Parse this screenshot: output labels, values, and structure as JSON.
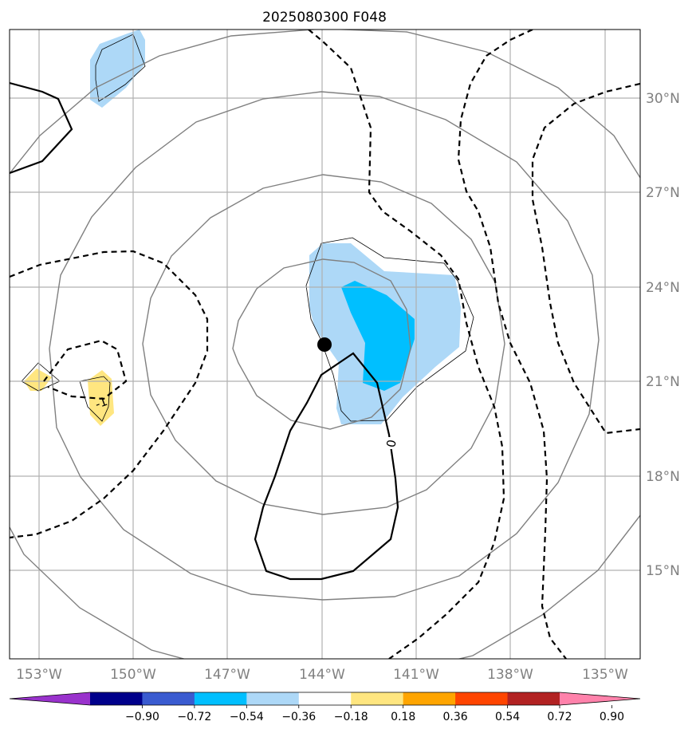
{
  "title": "2025080300 F048",
  "map": {
    "lon_range": [
      -154,
      -134
    ],
    "lat_range": [
      12.5,
      32.5
    ],
    "projection": "PlateCarree",
    "gridlines": true,
    "center_marker": {
      "lon": -143.9,
      "lat": 22.2,
      "label": ""
    },
    "lon_ticks": [
      {
        "value": -153,
        "label": "153°W"
      },
      {
        "value": -150,
        "label": "150°W"
      },
      {
        "value": -147,
        "label": "147°W"
      },
      {
        "value": -144,
        "label": "144°W"
      },
      {
        "value": -141,
        "label": "141°W"
      },
      {
        "value": -138,
        "label": "138°W"
      },
      {
        "value": -135,
        "label": "135°W"
      }
    ],
    "lat_ticks": [
      {
        "value": 15,
        "label": "15°N"
      },
      {
        "value": 18,
        "label": "18°N"
      },
      {
        "value": 21,
        "label": "21°N"
      },
      {
        "value": 24,
        "label": "24°N"
      },
      {
        "value": 27,
        "label": "27°N"
      },
      {
        "value": 30,
        "label": "30°N"
      }
    ],
    "range_rings_deg": [
      3,
      6,
      9,
      12
    ]
  },
  "contour_labels": [
    {
      "text": "0",
      "lon": -141.8,
      "lat": 19.0
    },
    {
      "text": "-1",
      "lon": -150.9,
      "lat": 20.4
    }
  ],
  "colorbar": {
    "ticks": [
      "−0.90",
      "−0.72",
      "−0.54",
      "−0.36",
      "−0.18",
      "0.18",
      "0.36",
      "0.54",
      "0.72",
      "0.90"
    ],
    "colors": [
      "#9932cc",
      "#00008b",
      "#3a5bd0",
      "#00bfff",
      "#add8f7",
      "#ffffff",
      "#ffe680",
      "#ffa500",
      "#ff4500",
      "#b22222",
      "#ff82ab"
    ],
    "extend": "both"
  },
  "colors": {
    "light_blue": "#add8f7",
    "deep_sky_blue": "#00bfff",
    "light_yellow": "#ffe680",
    "grid": "#b0b0b0",
    "rings": "#808080",
    "contour": "#000000"
  }
}
